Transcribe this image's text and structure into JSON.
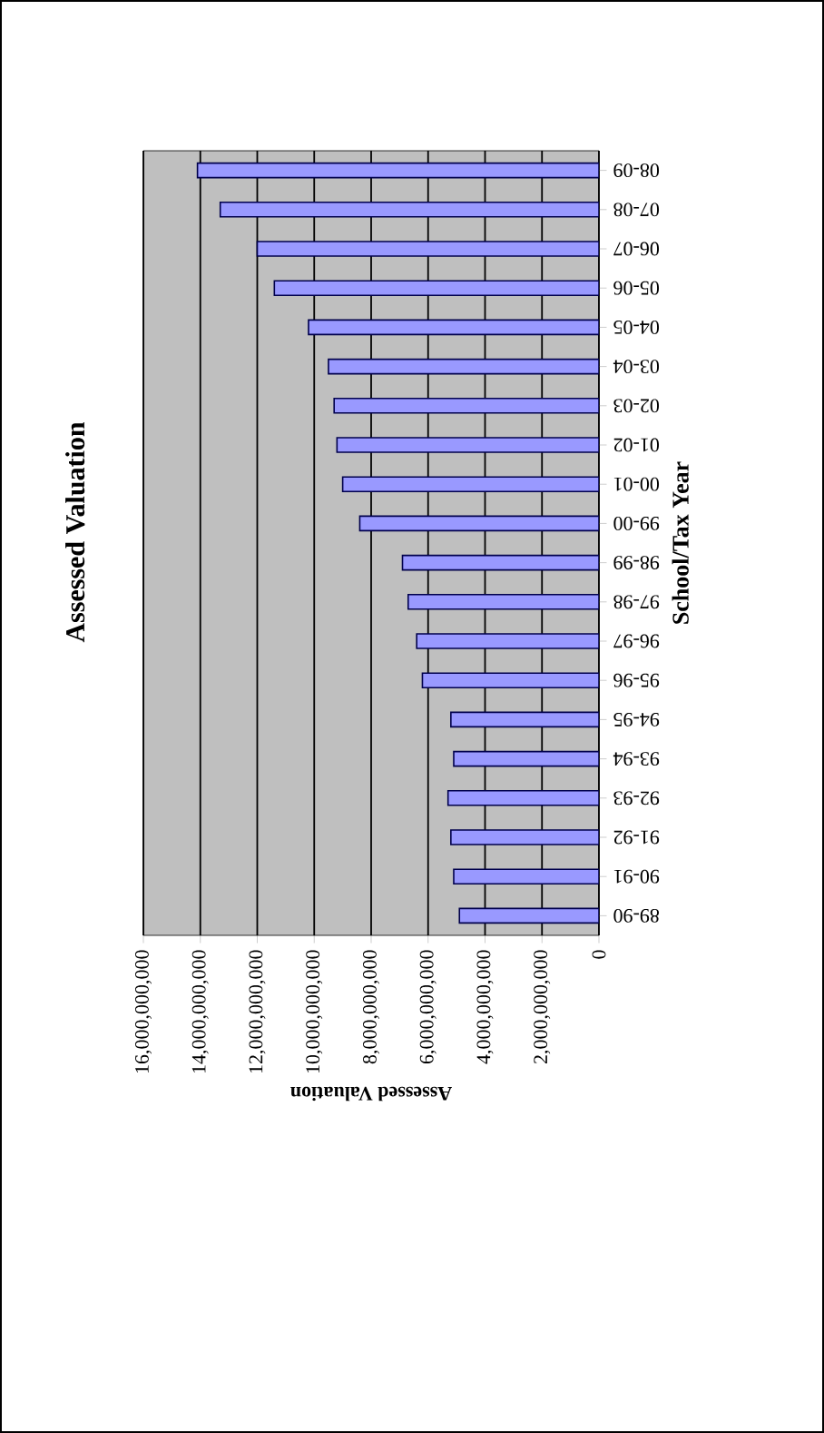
{
  "chart_data": {
    "type": "bar",
    "orientation": "horizontal",
    "title": "Assessed Valuation",
    "xlabel": "Assessed Valuation",
    "ylabel": "School/Tax Year",
    "categories": [
      "08-09",
      "07-08",
      "06-07",
      "05-06",
      "04-05",
      "03-04",
      "02-03",
      "01-02",
      "00-01",
      "99-00",
      "98-99",
      "97-98",
      "96-97",
      "95-96",
      "94-95",
      "93-94",
      "92-93",
      "91-92",
      "90-91",
      "89-90"
    ],
    "values": [
      14100000000,
      13300000000,
      12000000000,
      11400000000,
      10200000000,
      9500000000,
      9300000000,
      9200000000,
      9000000000,
      8400000000,
      6900000000,
      6700000000,
      6400000000,
      6200000000,
      5200000000,
      5100000000,
      5300000000,
      5200000000,
      5100000000,
      4900000000
    ],
    "color": "#9999ff",
    "xlim": [
      16000000000,
      0
    ],
    "xticks": [
      {
        "value": 16000000000,
        "label": "16,000,000,000"
      },
      {
        "value": 14000000000,
        "label": "14,000,000,000"
      },
      {
        "value": 12000000000,
        "label": "12,000,000,000"
      },
      {
        "value": 10000000000,
        "label": "10,000,000,000"
      },
      {
        "value": 8000000000,
        "label": "8,000,000,000"
      },
      {
        "value": 6000000000,
        "label": "6,000,000,000"
      },
      {
        "value": 4000000000,
        "label": "4,000,000,000"
      },
      {
        "value": 2000000000,
        "label": "2,000,000,000"
      },
      0
    ],
    "grid": "x"
  }
}
